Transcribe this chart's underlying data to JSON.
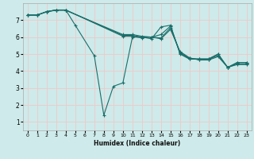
{
  "xlabel": "Humidex (Indice chaleur)",
  "ylabel": "",
  "bg_color": "#ceeaea",
  "grid_color": "#f0c8c8",
  "line_color": "#1a6e6a",
  "xlim": [
    -0.5,
    23.5
  ],
  "ylim": [
    0.5,
    8.0
  ],
  "xticks": [
    0,
    1,
    2,
    3,
    4,
    5,
    6,
    7,
    8,
    9,
    10,
    11,
    12,
    13,
    14,
    15,
    16,
    17,
    18,
    19,
    20,
    21,
    22,
    23
  ],
  "yticks": [
    1,
    2,
    3,
    4,
    5,
    6,
    7
  ],
  "lines": [
    {
      "x": [
        0,
        1,
        2,
        3,
        4,
        5,
        7,
        8,
        9,
        10,
        11,
        12,
        13,
        14,
        15,
        16,
        17,
        18,
        19,
        20,
        21,
        22,
        23
      ],
      "y": [
        7.3,
        7.3,
        7.5,
        7.6,
        7.6,
        6.7,
        4.9,
        1.4,
        3.1,
        3.3,
        6.0,
        6.0,
        5.9,
        6.6,
        6.7,
        5.0,
        4.7,
        4.7,
        4.7,
        5.0,
        4.2,
        4.5,
        4.5
      ]
    },
    {
      "x": [
        0,
        1,
        2,
        3,
        4,
        10,
        11,
        12,
        13,
        14,
        15,
        16,
        17,
        18,
        19,
        20,
        21,
        22,
        23
      ],
      "y": [
        7.3,
        7.3,
        7.5,
        7.6,
        7.6,
        6.05,
        6.05,
        5.95,
        6.0,
        6.15,
        6.65,
        5.05,
        4.72,
        4.72,
        4.72,
        5.0,
        4.22,
        4.5,
        4.5
      ]
    },
    {
      "x": [
        0,
        1,
        2,
        3,
        4,
        10,
        11,
        12,
        13,
        14,
        15,
        16,
        17,
        18,
        19,
        20,
        21,
        22,
        23
      ],
      "y": [
        7.3,
        7.3,
        7.5,
        7.6,
        7.6,
        6.1,
        6.1,
        6.0,
        6.0,
        5.95,
        6.55,
        5.1,
        4.75,
        4.68,
        4.68,
        4.92,
        4.22,
        4.42,
        4.42
      ]
    },
    {
      "x": [
        0,
        1,
        2,
        3,
        4,
        10,
        11,
        12,
        13,
        14,
        15,
        16,
        17,
        18,
        19,
        20,
        21,
        22,
        23
      ],
      "y": [
        7.3,
        7.3,
        7.5,
        7.58,
        7.58,
        6.15,
        6.15,
        6.05,
        6.0,
        5.9,
        6.45,
        5.15,
        4.78,
        4.65,
        4.65,
        4.85,
        4.22,
        4.38,
        4.38
      ]
    }
  ]
}
